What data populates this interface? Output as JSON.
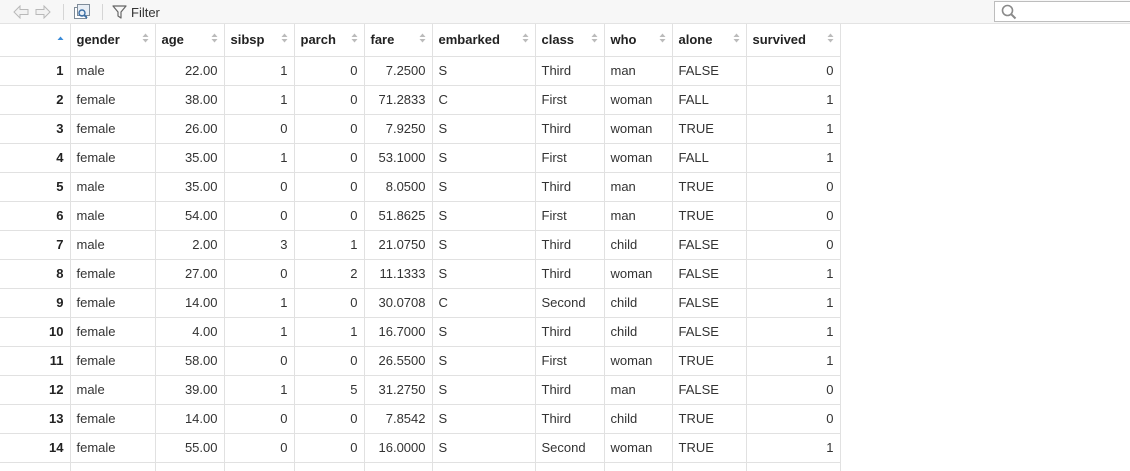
{
  "toolbar": {
    "filter_label": "Filter",
    "search_value": "",
    "search_placeholder": ""
  },
  "icons": {
    "back": "arrow-left-icon",
    "forward": "arrow-right-icon",
    "open_window": "new-window-icon",
    "filter": "filter-icon",
    "search": "search-icon"
  },
  "colors": {
    "sort_active": "#3a8bd8",
    "sort_inactive": "#bbbbbb"
  },
  "table": {
    "columns": [
      {
        "label": "",
        "align": "right"
      },
      {
        "label": "gender",
        "align": "left"
      },
      {
        "label": "age",
        "align": "right"
      },
      {
        "label": "sibsp",
        "align": "right"
      },
      {
        "label": "parch",
        "align": "right"
      },
      {
        "label": "fare",
        "align": "right"
      },
      {
        "label": "embarked",
        "align": "left"
      },
      {
        "label": "class",
        "align": "left"
      },
      {
        "label": "who",
        "align": "left"
      },
      {
        "label": "alone",
        "align": "left"
      },
      {
        "label": "survived",
        "align": "right"
      }
    ],
    "rows": [
      [
        "1",
        "male",
        "22.00",
        "1",
        "0",
        "7.2500",
        "S",
        "Third",
        "man",
        "FALSE",
        "0"
      ],
      [
        "2",
        "female",
        "38.00",
        "1",
        "0",
        "71.2833",
        "C",
        "First",
        "woman",
        "FALL",
        "1"
      ],
      [
        "3",
        "female",
        "26.00",
        "0",
        "0",
        "7.9250",
        "S",
        "Third",
        "woman",
        "TRUE",
        "1"
      ],
      [
        "4",
        "female",
        "35.00",
        "1",
        "0",
        "53.1000",
        "S",
        "First",
        "woman",
        "FALL",
        "1"
      ],
      [
        "5",
        "male",
        "35.00",
        "0",
        "0",
        "8.0500",
        "S",
        "Third",
        "man",
        "TRUE",
        "0"
      ],
      [
        "6",
        "male",
        "54.00",
        "0",
        "0",
        "51.8625",
        "S",
        "First",
        "man",
        "TRUE",
        "0"
      ],
      [
        "7",
        "male",
        "2.00",
        "3",
        "1",
        "21.0750",
        "S",
        "Third",
        "child",
        "FALSE",
        "0"
      ],
      [
        "8",
        "female",
        "27.00",
        "0",
        "2",
        "11.1333",
        "S",
        "Third",
        "woman",
        "FALSE",
        "1"
      ],
      [
        "9",
        "female",
        "14.00",
        "1",
        "0",
        "30.0708",
        "C",
        "Second",
        "child",
        "FALSE",
        "1"
      ],
      [
        "10",
        "female",
        "4.00",
        "1",
        "1",
        "16.7000",
        "S",
        "Third",
        "child",
        "FALSE",
        "1"
      ],
      [
        "11",
        "female",
        "58.00",
        "0",
        "0",
        "26.5500",
        "S",
        "First",
        "woman",
        "TRUE",
        "1"
      ],
      [
        "12",
        "male",
        "39.00",
        "1",
        "5",
        "31.2750",
        "S",
        "Third",
        "man",
        "FALSE",
        "0"
      ],
      [
        "13",
        "female",
        "14.00",
        "0",
        "0",
        "7.8542",
        "S",
        "Third",
        "child",
        "TRUE",
        "0"
      ],
      [
        "14",
        "female",
        "55.00",
        "0",
        "0",
        "16.0000",
        "S",
        "Second",
        "woman",
        "TRUE",
        "1"
      ]
    ]
  }
}
